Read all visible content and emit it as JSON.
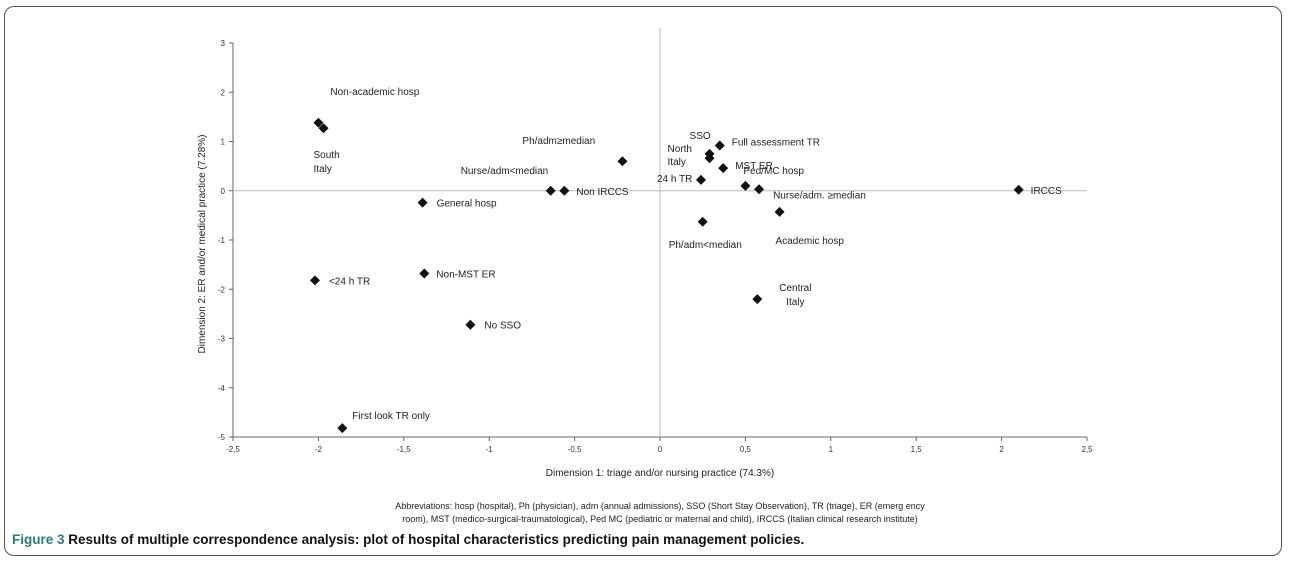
{
  "chart_data": {
    "type": "scatter",
    "xlabel": "Dimension 1: triage and/or nursing practice (74.3%)",
    "ylabel": "Dimension 2: ER and/or medical practice (7.28%)",
    "xlim": [
      -2.5,
      2.5
    ],
    "ylim": [
      -5,
      3
    ],
    "x_ticks": [
      "-2,5",
      "-2",
      "-1,5",
      "-1",
      "-0,5",
      "0",
      "0,5",
      "1",
      "1,5",
      "2",
      "2,5"
    ],
    "x_tick_values": [
      -2.5,
      -2,
      -1.5,
      -1,
      -0.5,
      0,
      0.5,
      1,
      1.5,
      2,
      2.5
    ],
    "y_ticks": [
      "3",
      "2",
      "1",
      "0",
      "-1",
      "-2",
      "-3",
      "-4",
      "-5"
    ],
    "y_tick_values": [
      3,
      2,
      1,
      0,
      -1,
      -2,
      -3,
      -4,
      -5
    ],
    "grid": false,
    "points": [
      {
        "label": "Non-academic hosp",
        "x": -2.0,
        "y": 1.38
      },
      {
        "label": "South Italy",
        "x": -1.97,
        "y": 1.27
      },
      {
        "label": "General hosp",
        "x": -1.39,
        "y": -0.24
      },
      {
        "label": "<24 h TR",
        "x": -2.02,
        "y": -1.82
      },
      {
        "label": "Non-MST ER",
        "x": -1.38,
        "y": -1.68
      },
      {
        "label": "No SSO",
        "x": -1.11,
        "y": -2.72
      },
      {
        "label": "First look TR only",
        "x": -1.86,
        "y": -4.82
      },
      {
        "label": "Ph/adm≥median",
        "x": -0.22,
        "y": 0.6
      },
      {
        "label": "Nurse/adm<median",
        "x": -0.64,
        "y": 0.0
      },
      {
        "label": "Non IRCCS",
        "x": -0.56,
        "y": 0.0
      },
      {
        "label": "SSO",
        "x": 0.29,
        "y": 0.75
      },
      {
        "label": "Full assessment TR",
        "x": 0.35,
        "y": 0.92
      },
      {
        "label": "North Italy",
        "x": 0.29,
        "y": 0.66
      },
      {
        "label": "MST ER",
        "x": 0.37,
        "y": 0.46
      },
      {
        "label": "24 h TR",
        "x": 0.24,
        "y": 0.22
      },
      {
        "label": "Ped/MC hosp",
        "x": 0.5,
        "y": 0.1
      },
      {
        "label": "Nurse/adm. ≥median",
        "x": 0.58,
        "y": 0.03
      },
      {
        "label": "Ph/adm<median",
        "x": 0.25,
        "y": -0.63
      },
      {
        "label": "Academic hosp",
        "x": 0.7,
        "y": -0.43
      },
      {
        "label": "Central Italy",
        "x": 0.57,
        "y": -2.2
      },
      {
        "label": "IRCCS",
        "x": 2.1,
        "y": 0.02
      }
    ]
  },
  "abbreviations": {
    "line1": "Abbreviations: hosp (hospital), Ph (physician), adm (annual admissions), SSO (Short Stay Observation), TR (triage), ER (emerg ency",
    "line2": "room), MST (medico-surgical-traumatological), Ped MC (pediatric or maternal and child), IRCCS (Italian clinical research institute)"
  },
  "caption": {
    "label": "Figure 3",
    "text": "Results of multiple correspondence analysis: plot of hospital characteristics predicting pain management policies."
  }
}
